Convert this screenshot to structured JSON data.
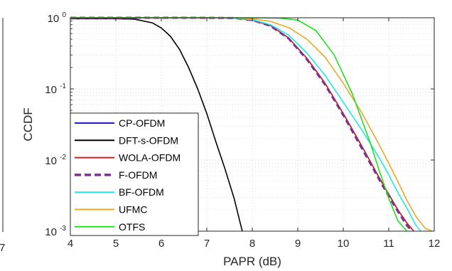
{
  "chart_data": {
    "type": "line",
    "xlabel": "PAPR (dB)",
    "ylabel": "CCDF",
    "xlim": [
      4,
      12
    ],
    "ylim": [
      0.001,
      1
    ],
    "yscale": "log",
    "grid": true,
    "legend_position": "bottom-left",
    "x_ticks": [
      "4",
      "5",
      "6",
      "7",
      "8",
      "9",
      "10",
      "11",
      "12"
    ],
    "y_ticks": [
      {
        "value": 1,
        "base": "10",
        "exp": "0"
      },
      {
        "value": 0.1,
        "base": "10",
        "exp": "-1"
      },
      {
        "value": 0.01,
        "base": "10",
        "exp": "-2"
      },
      {
        "value": 0.001,
        "base": "10",
        "exp": "-3"
      }
    ],
    "left_edge_fragment": "7",
    "series": [
      {
        "name": "CP-OFDM",
        "color": "#1f1fcf",
        "dash": false,
        "x": [
          4,
          6.8,
          7.6,
          8.0,
          8.4,
          8.8,
          9.2,
          9.6,
          10.0,
          10.4,
          10.8,
          11.0,
          11.2,
          11.4,
          11.55
        ],
        "y": [
          1,
          1,
          0.99,
          0.93,
          0.78,
          0.52,
          0.27,
          0.12,
          0.045,
          0.016,
          0.0055,
          0.0033,
          0.002,
          0.0013,
          0.001
        ]
      },
      {
        "name": "DFT-s-OFDM",
        "color": "#000000",
        "dash": false,
        "x": [
          4,
          5.0,
          5.4,
          5.8,
          6.0,
          6.2,
          6.4,
          6.6,
          6.8,
          7.0,
          7.2,
          7.4,
          7.6,
          7.7,
          7.78
        ],
        "y": [
          0.97,
          0.97,
          0.96,
          0.85,
          0.72,
          0.55,
          0.36,
          0.2,
          0.1,
          0.045,
          0.018,
          0.0075,
          0.0029,
          0.0016,
          0.001
        ]
      },
      {
        "name": "WOLA-OFDM",
        "color": "#d81b1b",
        "dash": false,
        "x": [
          4,
          6.8,
          7.6,
          8.0,
          8.4,
          8.8,
          9.2,
          9.6,
          10.0,
          10.4,
          10.8,
          11.0,
          11.2,
          11.4,
          11.55
        ],
        "y": [
          1,
          1,
          0.99,
          0.93,
          0.78,
          0.52,
          0.27,
          0.12,
          0.045,
          0.016,
          0.0055,
          0.0033,
          0.002,
          0.0013,
          0.001
        ]
      },
      {
        "name": "F-OFDM",
        "color": "#7e2f8e",
        "dash": true,
        "x": [
          4,
          6.8,
          7.6,
          8.0,
          8.4,
          8.8,
          9.2,
          9.6,
          10.0,
          10.4,
          10.8,
          11.0,
          11.2,
          11.4,
          11.52
        ],
        "y": [
          1,
          1,
          0.99,
          0.93,
          0.77,
          0.51,
          0.26,
          0.115,
          0.043,
          0.015,
          0.0052,
          0.0031,
          0.0019,
          0.0012,
          0.001
        ]
      },
      {
        "name": "BF-OFDM",
        "color": "#22e6e6",
        "dash": false,
        "x": [
          4,
          6.8,
          7.6,
          8.0,
          8.4,
          8.8,
          9.2,
          9.6,
          10.0,
          10.4,
          10.8,
          11.0,
          11.2,
          11.4,
          11.6,
          11.7
        ],
        "y": [
          1,
          1,
          0.99,
          0.94,
          0.8,
          0.57,
          0.32,
          0.155,
          0.065,
          0.027,
          0.0105,
          0.0062,
          0.0035,
          0.0021,
          0.0012,
          0.001
        ]
      },
      {
        "name": "UFMC",
        "color": "#e6a92a",
        "dash": false,
        "x": [
          4,
          6.8,
          7.6,
          8.0,
          8.4,
          8.8,
          9.2,
          9.6,
          10.0,
          10.4,
          10.8,
          11.0,
          11.2,
          11.4,
          11.6,
          11.8,
          11.95
        ],
        "y": [
          1,
          1,
          0.995,
          0.97,
          0.89,
          0.73,
          0.5,
          0.28,
          0.12,
          0.047,
          0.016,
          0.009,
          0.005,
          0.0027,
          0.0016,
          0.0011,
          0.001
        ]
      },
      {
        "name": "OTFS",
        "color": "#20e020",
        "dash": false,
        "x": [
          4,
          8.0,
          8.6,
          9.0,
          9.4,
          9.8,
          10.2,
          10.6,
          10.8,
          11.0,
          11.2,
          11.4
        ],
        "y": [
          1,
          1,
          0.99,
          0.93,
          0.66,
          0.3,
          0.085,
          0.017,
          0.0068,
          0.0029,
          0.0014,
          0.001
        ]
      }
    ]
  }
}
